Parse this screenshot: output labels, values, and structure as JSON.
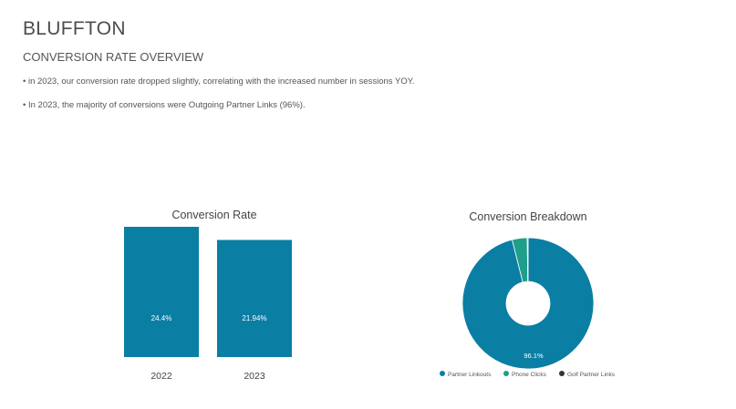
{
  "page": {
    "title": "BLUFFTON",
    "subtitle": "CONVERSION RATE OVERVIEW",
    "bullets": [
      "in 2023, our conversion rate dropped slightly, correlating with the increased number in sessions YOY.",
      "In 2023, the majority of conversions were Outgoing Partner Links (96%)."
    ]
  },
  "colors": {
    "primary": "#0b7ea3",
    "secondary": "#1f9e89",
    "tertiary": "#2f3640"
  },
  "chart_data": [
    {
      "type": "bar",
      "title": "Conversion Rate",
      "categories": [
        "2022",
        "2023"
      ],
      "values": [
        24.4,
        21.94
      ],
      "value_labels": [
        "24.4%",
        "21.94%"
      ],
      "ylim": [
        0,
        24.4
      ],
      "legend": "none",
      "grid": false
    },
    {
      "type": "pie",
      "title": "Conversion Breakdown",
      "donut": true,
      "labels": [
        "Partner Linkouts",
        "Phone Clicks",
        "Golf Partner Links"
      ],
      "values": [
        96.1,
        3.7,
        0.2
      ],
      "value_labels": [
        "96.1%",
        "",
        ""
      ],
      "legend": "bottom"
    }
  ]
}
